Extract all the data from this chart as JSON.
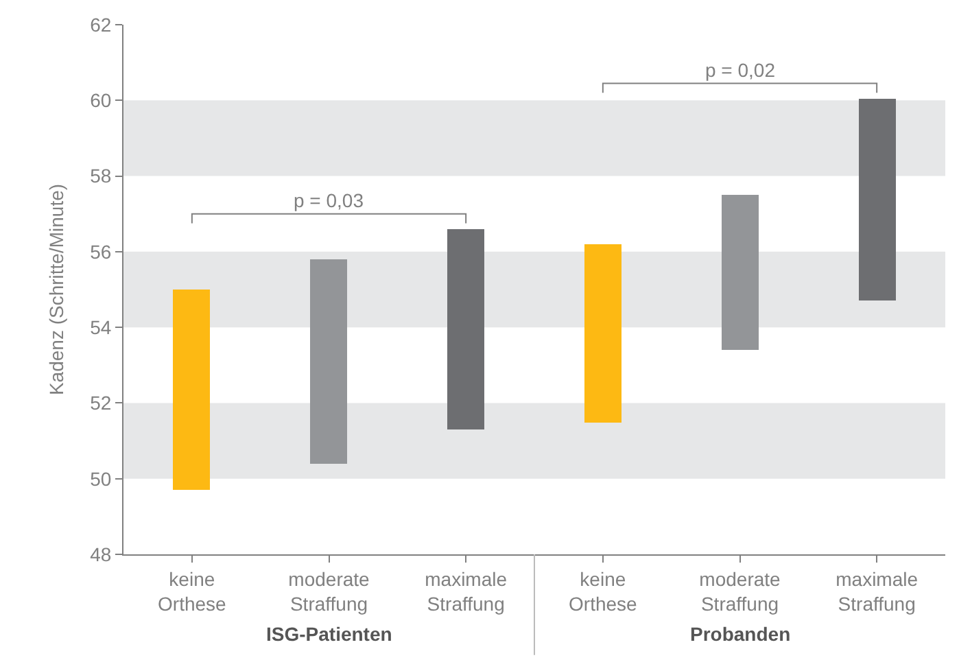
{
  "chart_data": {
    "type": "bar",
    "ylabel": "Kadenz (Schritte/Minute)",
    "categories": [
      "keine Orthese",
      "moderate Straffung",
      "maximale Straffung",
      "keine Orthese",
      "moderate Straffung",
      "maximale Straffung"
    ],
    "base": [
      49.7,
      50.4,
      51.3,
      51.5,
      53.4,
      54.7
    ],
    "values": [
      5.3,
      5.4,
      5.3,
      4.7,
      4.1,
      5.35
    ],
    "colors": [
      "#fdb913",
      "#939598",
      "#6d6e71",
      "#fdb913",
      "#939598",
      "#6d6e71"
    ],
    "ylim": [
      48,
      62
    ],
    "yticks": [
      48,
      50,
      52,
      54,
      56,
      58,
      60,
      62
    ],
    "bands": [
      {
        "axis": "y",
        "from": 50,
        "to": 52,
        "color": "#e6e7e8"
      },
      {
        "axis": "y",
        "from": 54,
        "to": 56,
        "color": "#e6e7e8"
      },
      {
        "axis": "y",
        "from": 58,
        "to": 60,
        "color": "#e6e7e8"
      }
    ],
    "annotations": [
      "p = 0,03",
      "p = 0,02",
      "ISG-Patienten",
      "Probanden"
    ],
    "grid": false,
    "legend": false
  }
}
